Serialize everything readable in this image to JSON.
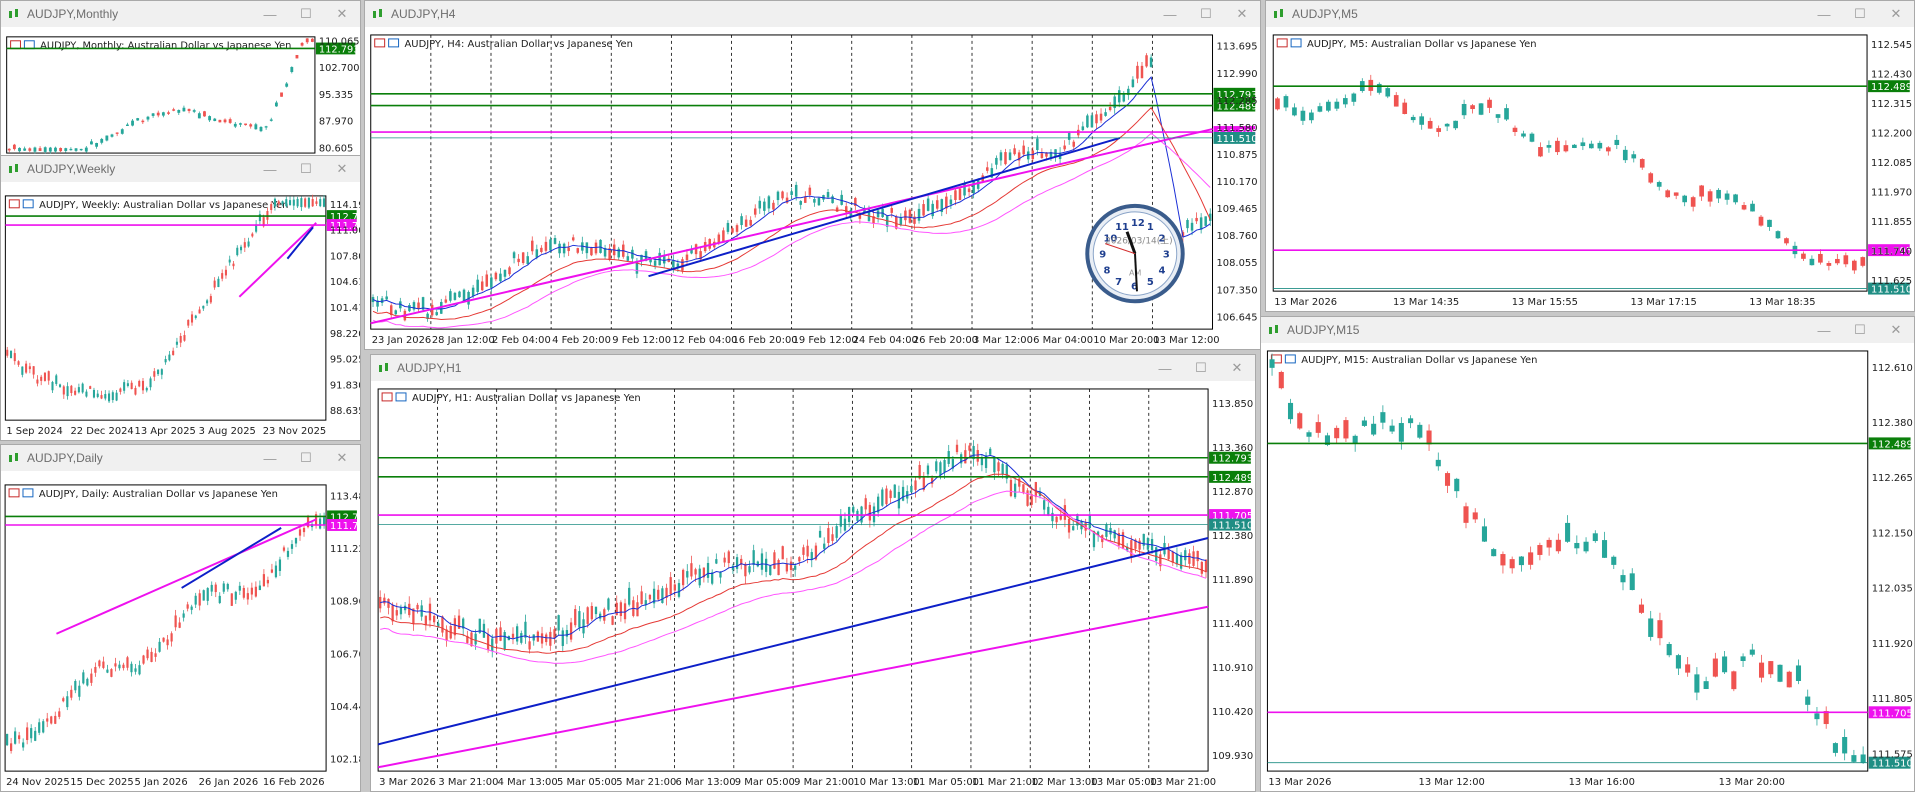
{
  "colors": {
    "bull": "#26a69a",
    "bear": "#ef5350",
    "ma_blue": "#1a2ed6",
    "ma_red": "#e53935",
    "ma_magenta": "#ff55ff",
    "trend_blue": "#0d1fc8",
    "trend_magenta": "#ee11ee",
    "green_line": "#0a7f0a",
    "green_label_bg": "#0a7f0a",
    "magenta_label_bg": "#ee11ee",
    "teal_label_bg": "#1f8e84"
  },
  "windows": [
    {
      "id": "monthly",
      "title": "AUDJPY,Monthly",
      "subtitle": "AUDJPY, Monthly:  Australian Dollar vs Japanese Yen",
      "seed": 11,
      "count": 60,
      "shape": "monthly",
      "ylabels": [
        "112.793",
        "110.065",
        "102.700",
        "95.335",
        "87.970",
        "80.605"
      ],
      "xlabels": [],
      "levels": [
        {
          "label": "112.793",
          "kind": "green"
        }
      ],
      "trend": "none",
      "clock": false
    },
    {
      "id": "weekly",
      "title": "AUDJPY,Weekly",
      "subtitle": "AUDJPY, Weekly:  Australian Dollar vs Japanese Yen",
      "seed": 22,
      "count": 85,
      "shape": "weekly",
      "ylabels": [
        "114.195",
        "112.793",
        "111.705",
        "111.000",
        "107.805",
        "104.610",
        "101.415",
        "98.220",
        "95.025",
        "91.830",
        "88.635"
      ],
      "xlabels": [
        "1 Sep 2024",
        "22 Dec 2024",
        "13 Apr 2025",
        "3 Aug 2025",
        "23 Nov 2025"
      ],
      "levels": [
        {
          "label": "112.793",
          "kind": "green"
        },
        {
          "label": "111.705",
          "kind": "magenta"
        }
      ],
      "trend": "weekly",
      "clock": false
    },
    {
      "id": "daily",
      "title": "AUDJPY,Daily",
      "subtitle": "AUDJPY, Daily:  Australian Dollar vs Japanese Yen",
      "seed": 33,
      "count": 80,
      "shape": "daily",
      "ylabels": [
        "113.480",
        "112.793",
        "111.705",
        "111.220",
        "108.960",
        "106.700",
        "104.440",
        "102.180"
      ],
      "xlabels": [
        "24 Nov 2025",
        "15 Dec 2025",
        "5 Jan 2026",
        "26 Jan 2026",
        "16 Feb 2026"
      ],
      "levels": [
        {
          "label": "112.793",
          "kind": "green"
        },
        {
          "label": "111.705",
          "kind": "magenta"
        }
      ],
      "trend": "daily",
      "clock": false
    },
    {
      "id": "h4",
      "title": "AUDJPY,H4",
      "subtitle": "AUDJPY, H4:  Australian Dollar vs Japanese Yen",
      "seed": 44,
      "count": 185,
      "shape": "h4",
      "ylabels": [
        "113.695",
        "112.990",
        "112.285",
        "111.580",
        "110.875",
        "110.170",
        "109.465",
        "108.760",
        "108.055",
        "107.350",
        "106.645"
      ],
      "xlabels": [
        "23 Jan 2026",
        "28 Jan 12:00",
        "2 Feb 04:00",
        "4 Feb 20:00",
        "9 Feb 12:00",
        "12 Feb 04:00",
        "16 Feb 20:00",
        "19 Feb 12:00",
        "24 Feb 04:00",
        "26 Feb 20:00",
        "3 Mar 12:00",
        "6 Mar 04:00",
        "10 Mar 20:00",
        "13 Mar 12:00"
      ],
      "levels": [
        {
          "label": "112.793",
          "kind": "green"
        },
        {
          "label": "112.489",
          "kind": "green"
        },
        {
          "label": "111.705",
          "kind": "magenta"
        },
        {
          "label": "111.510",
          "kind": "teal"
        }
      ],
      "trend": "h4",
      "clock": true,
      "clock_text": "2026/03/14(土)",
      "clock_am": "AM"
    },
    {
      "id": "h1",
      "title": "AUDJPY,H1",
      "subtitle": "AUDJPY, H1:  Australian Dollar vs Japanese Yen",
      "seed": 55,
      "count": 200,
      "shape": "h1",
      "ylabels": [
        "113.850",
        "113.360",
        "112.870",
        "112.380",
        "111.890",
        "111.400",
        "110.910",
        "110.420",
        "109.930"
      ],
      "xlabels": [
        "3 Mar 2026",
        "3 Mar 21:00",
        "4 Mar 13:00",
        "5 Mar 05:00",
        "5 Mar 21:00",
        "6 Mar 13:00",
        "9 Mar 05:00",
        "9 Mar 21:00",
        "10 Mar 13:00",
        "11 Mar 05:00",
        "11 Mar 21:00",
        "12 Mar 13:00",
        "13 Mar 05:00",
        "13 Mar 21:00"
      ],
      "levels": [
        {
          "label": "112.793",
          "kind": "green"
        },
        {
          "label": "112.489",
          "kind": "green"
        },
        {
          "label": "111.705",
          "kind": "magenta"
        },
        {
          "label": "111.510",
          "kind": "teal"
        }
      ],
      "trend": "h1",
      "clock": false
    },
    {
      "id": "m5",
      "title": "AUDJPY,M5",
      "subtitle": "AUDJPY, M5:  Australian Dollar vs Japanese Yen",
      "seed": 66,
      "count": 70,
      "shape": "m5",
      "ylabels": [
        "112.545",
        "112.489",
        "112.430",
        "112.315",
        "112.200",
        "112.085",
        "111.970",
        "111.855",
        "111.740",
        "111.705",
        "111.625",
        "111.510"
      ],
      "xlabels": [
        "13 Mar 2026",
        "13 Mar 14:35",
        "13 Mar 15:55",
        "13 Mar 17:15",
        "13 Mar 18:35"
      ],
      "levels": [
        {
          "label": "112.489",
          "kind": "green"
        },
        {
          "label": "111.705",
          "kind": "magenta"
        },
        {
          "label": "111.510",
          "kind": "teal"
        }
      ],
      "trend": "none",
      "clock": false
    },
    {
      "id": "m15",
      "title": "AUDJPY,M15",
      "subtitle": "AUDJPY, M15:  Australian Dollar vs Japanese Yen",
      "seed": 77,
      "count": 65,
      "shape": "m15",
      "ylabels": [
        "112.610",
        "112.489",
        "112.380",
        "112.265",
        "112.150",
        "112.035",
        "111.920",
        "111.805",
        "111.705",
        "111.575",
        "111.510"
      ],
      "xlabels": [
        "13 Mar 2026",
        "13 Mar 12:00",
        "13 Mar 16:00",
        "13 Mar 20:00"
      ],
      "levels": [
        {
          "label": "112.489",
          "kind": "green"
        },
        {
          "label": "111.705",
          "kind": "magenta"
        },
        {
          "label": "111.510",
          "kind": "teal"
        }
      ],
      "trend": "none",
      "clock": false
    }
  ]
}
